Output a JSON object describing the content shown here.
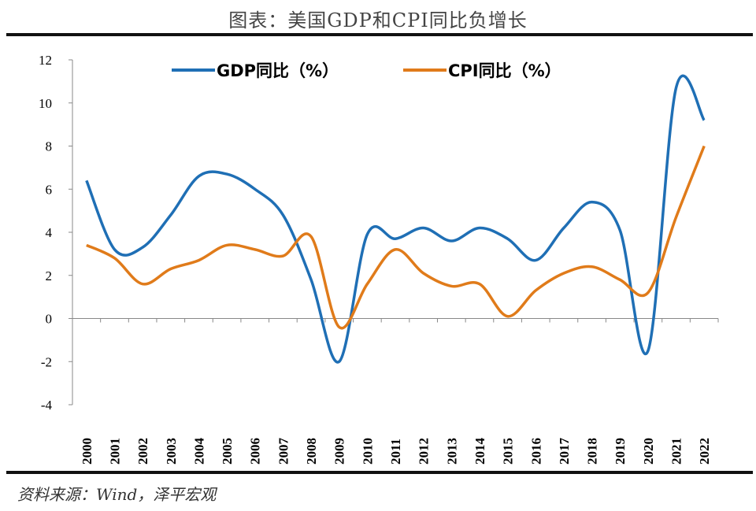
{
  "title": "图表：美国GDP和CPI同比负增长",
  "source": "资料来源：Wind，泽平宏观",
  "chart_data": {
    "type": "line",
    "title": "图表：美国GDP和CPI同比负增长",
    "categories": [
      "2000",
      "2001",
      "2002",
      "2003",
      "2004",
      "2005",
      "2006",
      "2007",
      "2008",
      "2009",
      "2010",
      "2011",
      "2012",
      "2013",
      "2014",
      "2015",
      "2016",
      "2017",
      "2018",
      "2019",
      "2020",
      "2021",
      "2022"
    ],
    "series": [
      {
        "name": "GDP同比（%）",
        "color": "#1f6fb5",
        "values": [
          6.4,
          3.2,
          3.3,
          4.8,
          6.6,
          6.7,
          6.0,
          4.8,
          1.8,
          -2.0,
          3.9,
          3.7,
          4.2,
          3.6,
          4.2,
          3.7,
          2.7,
          4.2,
          5.4,
          4.1,
          -1.5,
          10.7,
          9.2
        ]
      },
      {
        "name": "CPI同比（%）",
        "color": "#e07b1a",
        "values": [
          3.4,
          2.8,
          1.6,
          2.3,
          2.7,
          3.4,
          3.2,
          2.9,
          3.8,
          -0.4,
          1.6,
          3.2,
          2.1,
          1.5,
          1.6,
          0.1,
          1.3,
          2.1,
          2.4,
          1.8,
          1.2,
          4.7,
          8.0
        ]
      }
    ],
    "ylim": [
      -4,
      12
    ],
    "yticks": [
      "12",
      "10",
      "8",
      "6",
      "4",
      "2",
      "0",
      "-2",
      "-4"
    ],
    "grid": false,
    "legend": "top"
  }
}
